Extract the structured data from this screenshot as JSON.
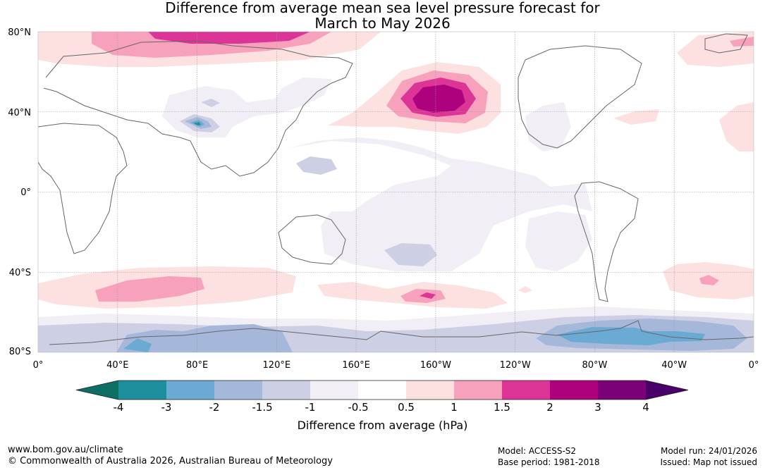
{
  "title": {
    "line1": "Difference from average mean sea level pressure forecast for",
    "line2": "March to May 2026"
  },
  "axes": {
    "lat_labels": [
      "80°N",
      "40°N",
      "0°",
      "40°S",
      "80°S"
    ],
    "lon_labels": [
      "0°",
      "40°E",
      "80°E",
      "120°E",
      "160°E",
      "160°W",
      "120°W",
      "80°W",
      "40°W",
      "0°"
    ]
  },
  "colorbar": {
    "title": "Difference from average (hPa)",
    "tick_labels": [
      "-4",
      "-3",
      "-2",
      "-1.5",
      "-1",
      "-0.5",
      "0.5",
      "1",
      "1.5",
      "2",
      "3",
      "4"
    ],
    "colors": [
      "#0d6e63",
      "#1d8f9c",
      "#6aaad3",
      "#a5b8d9",
      "#cdd0e5",
      "#f2eef5",
      "#ffffff",
      "#fde0e0",
      "#f7a1bc",
      "#dd3497",
      "#ae017e",
      "#7a0177",
      "#49006a"
    ]
  },
  "footer": {
    "website": "www.bom.gov.au/climate",
    "copyright": "© Commonwealth of Australia 2026, Australian Bureau of Meteorology",
    "model": "Model: ACCESS-S2",
    "base_period": "Base period: 1981-2018",
    "model_run": "Model run: 24/01/2026",
    "issued": "Issued: Map not issued"
  }
}
